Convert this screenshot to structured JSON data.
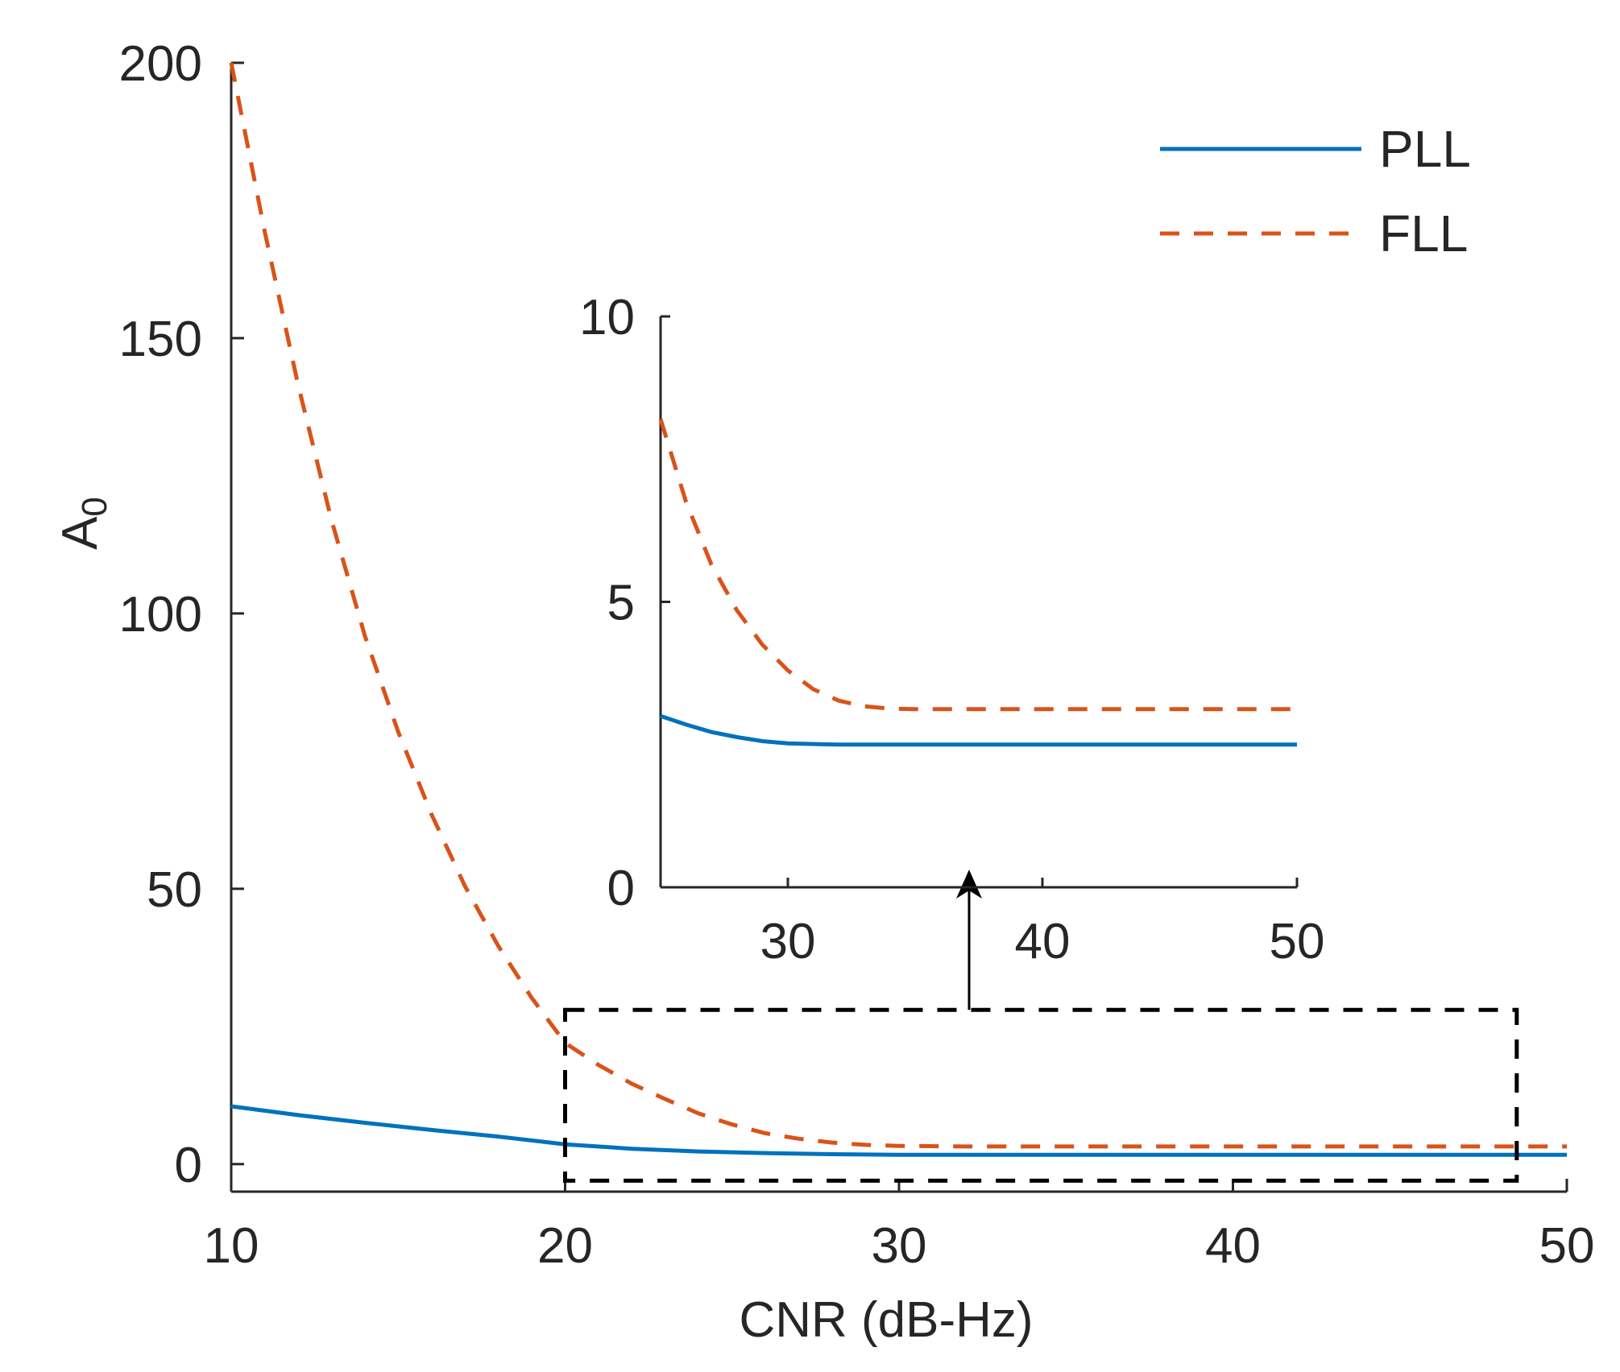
{
  "chart_data": {
    "type": "line",
    "title": "",
    "xlabel": "CNR (dB-Hz)",
    "ylabel_main": "A",
    "ylabel_sub": "0",
    "xlim": [
      10,
      50
    ],
    "ylim": [
      -5,
      200
    ],
    "xticks": [
      10,
      20,
      30,
      40,
      50
    ],
    "yticks": [
      0,
      50,
      100,
      150,
      200
    ],
    "legend": {
      "position": "top-right",
      "entries": [
        "PLL",
        "FLL"
      ]
    },
    "series": [
      {
        "name": "PLL",
        "color": "#0072BD",
        "style": "solid",
        "x": [
          10,
          12,
          14,
          16,
          18,
          20,
          22,
          24,
          26,
          28,
          30,
          35,
          40,
          45,
          50
        ],
        "y": [
          10.5,
          8.9,
          7.5,
          6.2,
          5.0,
          3.6,
          2.8,
          2.3,
          2.0,
          1.8,
          1.7,
          1.7,
          1.7,
          1.7,
          1.7
        ]
      },
      {
        "name": "FLL",
        "color": "#D95319",
        "style": "dashed",
        "x": [
          10,
          11,
          12,
          13,
          14,
          15,
          16,
          17,
          18,
          19,
          20,
          21,
          22,
          23,
          24,
          25,
          26,
          27,
          28,
          29,
          30,
          32,
          34,
          36,
          40,
          45,
          50
        ],
        "y": [
          200,
          169.5,
          141.6,
          117.0,
          96.0,
          78.5,
          63.5,
          50.5,
          39.6,
          30.2,
          22.0,
          18.0,
          14.6,
          11.8,
          9.2,
          7.2,
          5.6,
          4.6,
          3.9,
          3.5,
          3.3,
          3.2,
          3.2,
          3.2,
          3.2,
          3.2,
          3.2
        ]
      }
    ],
    "zoom_box": {
      "xlim": [
        20,
        48.5
      ],
      "ylim": [
        -3,
        28
      ]
    },
    "inset": {
      "xlim": [
        25,
        50
      ],
      "ylim": [
        0,
        10
      ],
      "xticks": [
        30,
        40,
        50
      ],
      "yticks": [
        0,
        5,
        10
      ],
      "series": [
        {
          "name": "PLL",
          "x": [
            25,
            26,
            27,
            28,
            29,
            30,
            32,
            35,
            40,
            45,
            50
          ],
          "y": [
            3.0,
            2.85,
            2.72,
            2.63,
            2.56,
            2.52,
            2.5,
            2.5,
            2.5,
            2.5,
            2.5
          ]
        },
        {
          "name": "FLL",
          "x": [
            25,
            26,
            27,
            28,
            29,
            30,
            31,
            32,
            33,
            34,
            35,
            37,
            40,
            45,
            50
          ],
          "y": [
            8.2,
            6.75,
            5.65,
            4.85,
            4.25,
            3.8,
            3.47,
            3.27,
            3.17,
            3.13,
            3.12,
            3.12,
            3.12,
            3.12,
            3.12
          ]
        }
      ]
    }
  }
}
